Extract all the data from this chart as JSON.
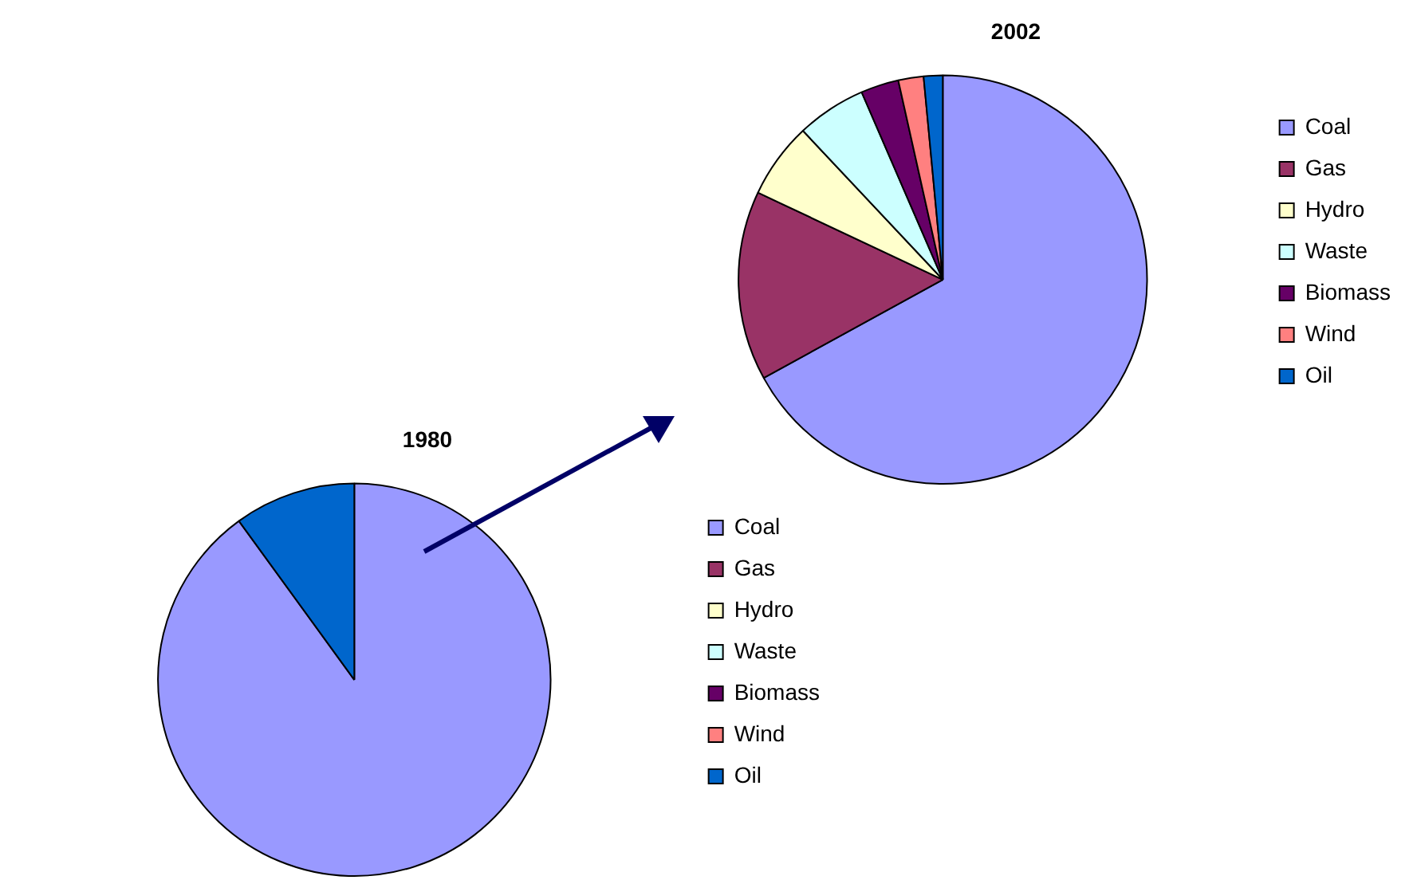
{
  "chart_data": [
    {
      "type": "pie",
      "title": "1980",
      "categories": [
        "Coal",
        "Gas",
        "Hydro",
        "Waste",
        "Biomass",
        "Wind",
        "Oil"
      ],
      "values": [
        90,
        0,
        0,
        0,
        0,
        0,
        10
      ],
      "colors": [
        "#9999ff",
        "#993366",
        "#ffffcc",
        "#ccffff",
        "#660066",
        "#ff8080",
        "#0066cc"
      ],
      "legend": "right"
    },
    {
      "type": "pie",
      "title": "2002",
      "categories": [
        "Coal",
        "Gas",
        "Hydro",
        "Waste",
        "Biomass",
        "Wind",
        "Oil"
      ],
      "values": [
        67,
        15,
        6,
        5.5,
        3,
        2,
        1.5
      ],
      "colors": [
        "#9999ff",
        "#993366",
        "#ffffcc",
        "#ccffff",
        "#660066",
        "#ff8080",
        "#0066cc"
      ],
      "legend": "right"
    }
  ]
}
